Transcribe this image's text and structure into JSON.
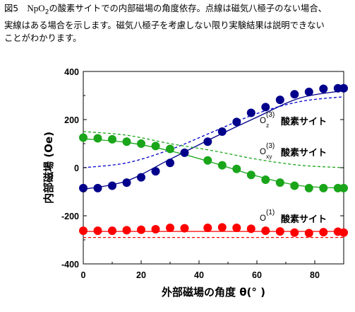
{
  "caption": {
    "figure_label": "図5",
    "formula_pre": "NpO",
    "formula_sub": "2",
    "text_line1": "の酸素サイトでの内部磁場の角度依存。点線は磁気八極子のない場合、",
    "text_rest": "実線はある場合を示します。磁気八極子を考慮しない限り実験結果は説明できない\nことがわかります。"
  },
  "chart_data": {
    "type": "scatter",
    "xlabel": "外部磁場の角度 θ(° )",
    "ylabel": "内部磁場 (Oe)",
    "xlim": [
      0,
      90
    ],
    "ylim": [
      -400,
      400
    ],
    "xticks": [
      0,
      20,
      40,
      60,
      80
    ],
    "yticks": [
      -400,
      -200,
      0,
      200,
      400
    ],
    "grid": false,
    "series": [
      {
        "label_sup": "(3)",
        "label_sub": "z",
        "label_text": "酸素サイト",
        "color": "#00008b",
        "x": [
          0,
          5,
          10,
          15,
          20,
          25,
          30,
          35,
          43,
          48,
          53,
          58,
          63,
          68,
          73,
          78,
          83,
          88,
          90
        ],
        "y": [
          -85,
          -85,
          -75,
          -62,
          -40,
          -15,
          20,
          62,
          108,
          150,
          190,
          228,
          252,
          282,
          305,
          315,
          328,
          330,
          330
        ]
      },
      {
        "label_sup": "(3)",
        "label_sub": "xy",
        "label_text": "酸素サイト",
        "color": "#1aa51a",
        "x": [
          0,
          5,
          10,
          15,
          20,
          25,
          30,
          43,
          48,
          53,
          58,
          63,
          68,
          73,
          78,
          83,
          88,
          90
        ],
        "y": [
          125,
          122,
          118,
          108,
          100,
          90,
          78,
          30,
          10,
          -5,
          -30,
          -50,
          -62,
          -75,
          -85,
          -85,
          -85,
          -85
        ]
      },
      {
        "label_sup": "(1)",
        "label_sub": "",
        "label_text": "酸素サイト",
        "color": "#ff0000",
        "x": [
          0,
          5,
          10,
          15,
          20,
          25,
          30,
          35,
          43,
          48,
          53,
          58,
          63,
          68,
          73,
          78,
          83,
          88,
          90
        ],
        "y": [
          -262,
          -262,
          -262,
          -260,
          -258,
          -256,
          -250,
          -252,
          -250,
          -248,
          -250,
          -254,
          -262,
          -265,
          -270,
          -272,
          -268,
          -266,
          -270
        ]
      }
    ],
    "curves": [
      {
        "color": "#00008b",
        "style": "solid",
        "x": [
          0,
          15,
          30,
          45,
          60,
          75,
          90
        ],
        "y": [
          -90,
          -55,
          35,
          125,
          210,
          290,
          320
        ]
      },
      {
        "color": "#0000cd",
        "style": "dashed",
        "x": [
          0,
          15,
          30,
          45,
          60,
          75,
          90
        ],
        "y": [
          0,
          20,
          75,
          150,
          225,
          275,
          295
        ]
      },
      {
        "color": "#1aa51a",
        "style": "solid",
        "x": [
          0,
          15,
          30,
          45,
          60,
          75,
          90
        ],
        "y": [
          120,
          105,
          70,
          20,
          -35,
          -75,
          -85
        ]
      },
      {
        "color": "#1aa51a",
        "style": "dashed",
        "x": [
          0,
          15,
          30,
          45,
          60,
          75,
          90
        ],
        "y": [
          150,
          135,
          100,
          70,
          35,
          10,
          0
        ]
      },
      {
        "color": "#ff0000",
        "style": "solid",
        "x": [
          0,
          15,
          30,
          45,
          60,
          75,
          90
        ],
        "y": [
          -265,
          -265,
          -265,
          -265,
          -265,
          -265,
          -265
        ]
      },
      {
        "color": "#ff0000",
        "style": "dashed",
        "x": [
          0,
          15,
          30,
          45,
          60,
          75,
          90
        ],
        "y": [
          -290,
          -290,
          -290,
          -290,
          -290,
          -290,
          -290
        ]
      }
    ]
  }
}
